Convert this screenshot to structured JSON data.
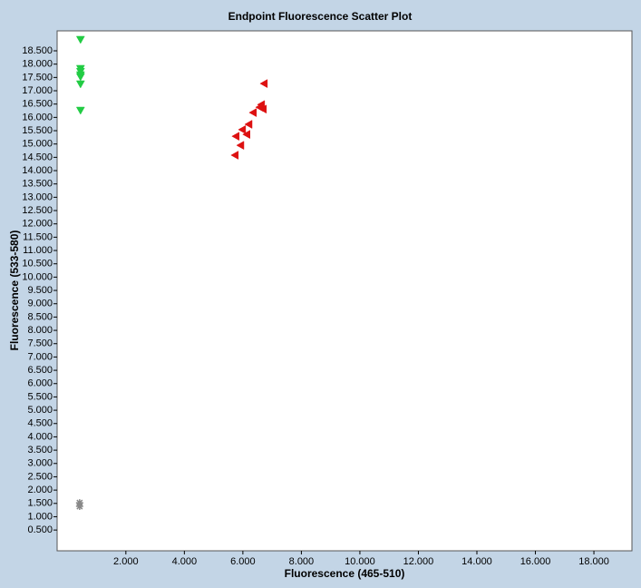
{
  "chart_data": {
    "type": "scatter",
    "title": "Endpoint Fluorescence Scatter Plot",
    "x_label": "Fluorescence (465-510)",
    "y_label": "Fluorescence (533-580)",
    "xlim": [
      -350,
      19300
    ],
    "ylim": [
      -280,
      19250
    ],
    "xticks": [
      {
        "value": 2000,
        "label": "2.000"
      },
      {
        "value": 4000,
        "label": "4.000"
      },
      {
        "value": 6000,
        "label": "6.000"
      },
      {
        "value": 8000,
        "label": "8.000"
      },
      {
        "value": 10000,
        "label": "10.000"
      },
      {
        "value": 12000,
        "label": "12.000"
      },
      {
        "value": 14000,
        "label": "14.000"
      },
      {
        "value": 16000,
        "label": "16.000"
      },
      {
        "value": 18000,
        "label": "18.000"
      }
    ],
    "yticks": [
      {
        "value": 500,
        "label": "0.500"
      },
      {
        "value": 1000,
        "label": "1.000"
      },
      {
        "value": 1500,
        "label": "1.500"
      },
      {
        "value": 2000,
        "label": "2.000"
      },
      {
        "value": 2500,
        "label": "2.500"
      },
      {
        "value": 3000,
        "label": "3.000"
      },
      {
        "value": 3500,
        "label": "3.500"
      },
      {
        "value": 4000,
        "label": "4.000"
      },
      {
        "value": 4500,
        "label": "4.500"
      },
      {
        "value": 5000,
        "label": "5.000"
      },
      {
        "value": 5500,
        "label": "5.500"
      },
      {
        "value": 6000,
        "label": "6.000"
      },
      {
        "value": 6500,
        "label": "6.500"
      },
      {
        "value": 7000,
        "label": "7.000"
      },
      {
        "value": 7500,
        "label": "7.500"
      },
      {
        "value": 8000,
        "label": "8.000"
      },
      {
        "value": 8500,
        "label": "8.500"
      },
      {
        "value": 9000,
        "label": "9.000"
      },
      {
        "value": 9500,
        "label": "9.500"
      },
      {
        "value": 10000,
        "label": "10.000"
      },
      {
        "value": 10500,
        "label": "10.500"
      },
      {
        "value": 11000,
        "label": "11.000"
      },
      {
        "value": 11500,
        "label": "11.500"
      },
      {
        "value": 12000,
        "label": "12.000"
      },
      {
        "value": 12500,
        "label": "12.500"
      },
      {
        "value": 13000,
        "label": "13.000"
      },
      {
        "value": 13500,
        "label": "13.500"
      },
      {
        "value": 14000,
        "label": "14.000"
      },
      {
        "value": 14500,
        "label": "14.500"
      },
      {
        "value": 15000,
        "label": "15.000"
      },
      {
        "value": 15500,
        "label": "15.500"
      },
      {
        "value": 16000,
        "label": "16.000"
      },
      {
        "value": 16500,
        "label": "16.500"
      },
      {
        "value": 17000,
        "label": "17.000"
      },
      {
        "value": 17500,
        "label": "17.500"
      },
      {
        "value": 18000,
        "label": "18.000"
      },
      {
        "value": 18500,
        "label": "18.500"
      }
    ],
    "series": [
      {
        "color": "#22cc44",
        "marker": "triangle-down",
        "x": [
          450,
          450,
          450,
          450,
          450,
          450,
          450
        ],
        "values": [
          18910,
          17820,
          17710,
          17580,
          17510,
          17240,
          16250
        ]
      },
      {
        "color": "#dd1111",
        "marker": "triangle-left",
        "x": [
          6713,
          6620,
          6680,
          6560,
          6340,
          6190,
          5970,
          6120,
          5750,
          5910,
          5720
        ],
        "values": [
          17270,
          16480,
          16310,
          16380,
          16180,
          15740,
          15540,
          15360,
          15290,
          14950,
          14580
        ]
      },
      {
        "color": "#888888",
        "marker": "asterisk",
        "x": [
          420,
          420
        ],
        "values": [
          1524,
          1388
        ]
      }
    ]
  }
}
